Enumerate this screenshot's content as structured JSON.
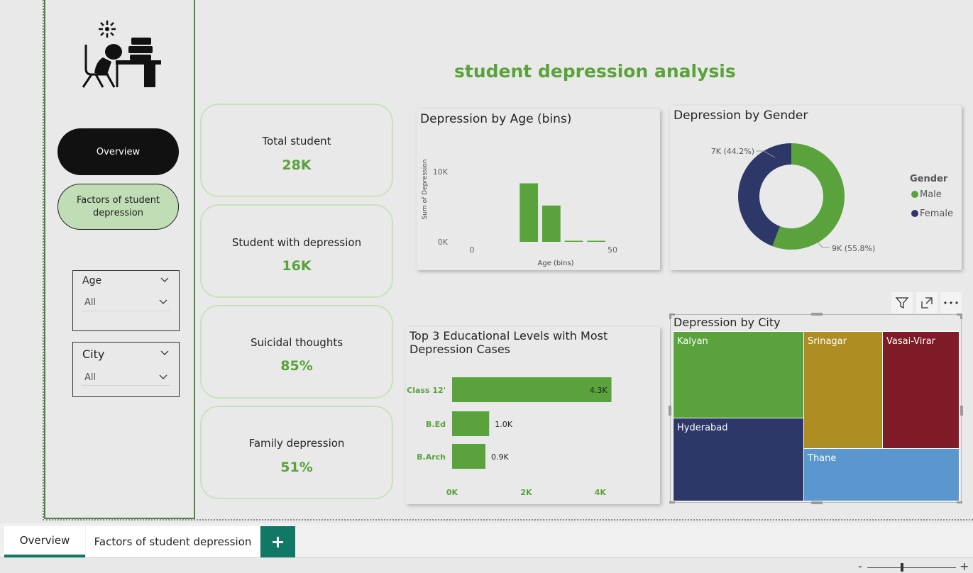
{
  "page_title": "student depression analysis",
  "nav": {
    "overview": "Overview",
    "factors": "Factors of student depression"
  },
  "slicers": {
    "age": {
      "title": "Age",
      "value": "All"
    },
    "city": {
      "title": "City",
      "value": "All"
    }
  },
  "cards": [
    {
      "label": "Total student",
      "value": "28K"
    },
    {
      "label": "Student with depression",
      "value": "16K"
    },
    {
      "label": "Suicidal thoughts",
      "value": "85%"
    },
    {
      "label": "Family depression",
      "value": "51%"
    }
  ],
  "colors": {
    "green": "#5aa23b",
    "navy": "#2d3768",
    "mustard": "#ae8e22",
    "maroon": "#7e1b26",
    "blue": "#5b97cf",
    "tab_accent": "#117865"
  },
  "chart_data": [
    {
      "type": "bar",
      "title": "Depression by Age (bins)",
      "xlabel": "Age (bins)",
      "ylabel": "Sum of Depression",
      "x_ticks": [
        "0",
        "50"
      ],
      "y_ticks": [
        "0K",
        "10K"
      ],
      "ylim": [
        0,
        12000
      ],
      "xlim": [
        0,
        50
      ],
      "bins": [
        {
          "start": 17,
          "end": 24,
          "value": 10000
        },
        {
          "start": 25,
          "end": 32,
          "value": 6200
        },
        {
          "start": 33,
          "end": 40,
          "value": 50
        },
        {
          "start": 41,
          "end": 48,
          "value": 30
        }
      ]
    },
    {
      "type": "pie",
      "donut": true,
      "title": "Depression by Gender",
      "legend_title": "Gender",
      "legend_position": "right",
      "slices": [
        {
          "name": "Male",
          "value": 9,
          "percent": 55.8,
          "label": "9K (55.8%)",
          "color": "#5aa23b"
        },
        {
          "name": "Female",
          "value": 7,
          "percent": 44.2,
          "label": "7K (44.2%)",
          "color": "#2d3768"
        }
      ]
    },
    {
      "type": "bar",
      "orientation": "horizontal",
      "title": "Top 3 Educational Levels with Most Depression Cases",
      "categories": [
        "'Class 12'",
        "B.Ed",
        "B.Arch"
      ],
      "values": [
        4.3,
        1.0,
        0.9
      ],
      "data_labels": [
        "4.3K",
        "1.0K",
        "0.9K"
      ],
      "x_ticks": [
        "0K",
        "2K",
        "4K"
      ],
      "xlim": [
        0,
        4.5
      ]
    },
    {
      "type": "treemap",
      "title": "Depression by City",
      "cells": [
        {
          "name": "Kalyan",
          "color": "#5aa23b"
        },
        {
          "name": "Hyderabad",
          "color": "#2d3768"
        },
        {
          "name": "Srinagar",
          "color": "#ae8e22"
        },
        {
          "name": "Vasai-Virar",
          "color": "#7e1b26"
        },
        {
          "name": "Thane",
          "color": "#5b97cf"
        }
      ]
    }
  ],
  "tabs": [
    {
      "label": "Overview",
      "active": true
    },
    {
      "label": "Factors of student depression",
      "active": false
    }
  ],
  "tab_add": "+",
  "zoom": {
    "minus": "-",
    "plus": "+"
  }
}
